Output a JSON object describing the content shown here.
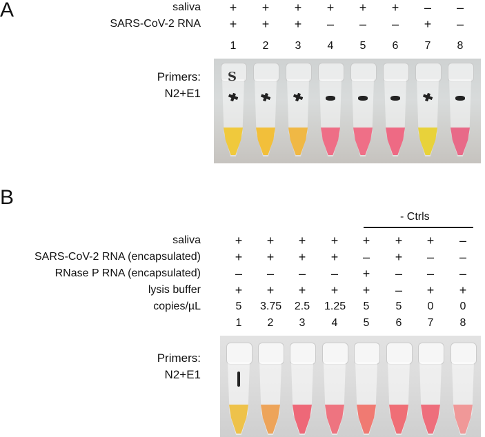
{
  "panelA": {
    "letter": "A",
    "rows": [
      {
        "label": "saliva",
        "values": [
          "+",
          "+",
          "+",
          "+",
          "+",
          "+",
          "–",
          "–"
        ]
      },
      {
        "label": "SARS-CoV-2 RNA",
        "values": [
          "+",
          "+",
          "+",
          "–",
          "–",
          "–",
          "+",
          "–"
        ]
      }
    ],
    "lanes": [
      "1",
      "2",
      "3",
      "4",
      "5",
      "6",
      "7",
      "8"
    ],
    "primers_line1": "Primers:",
    "primers_line2": "N2+E1",
    "tube_mark": "S",
    "tubes": [
      {
        "liquid": "#f0c93c",
        "mark": "cross"
      },
      {
        "liquid": "#f2bf3a",
        "mark": "cross"
      },
      {
        "liquid": "#f0b845",
        "mark": "cross"
      },
      {
        "liquid": "#ee6e86",
        "mark": "dash"
      },
      {
        "liquid": "#ef6f87",
        "mark": "dash"
      },
      {
        "liquid": "#ee6a84",
        "mark": "dash"
      },
      {
        "liquid": "#e8d23a",
        "mark": "cross"
      },
      {
        "liquid": "#e86a88",
        "mark": "dash"
      }
    ]
  },
  "panelB": {
    "letter": "B",
    "ctrl_label": "- Ctrls",
    "rows": [
      {
        "label": "saliva",
        "values": [
          "+",
          "+",
          "+",
          "+",
          "+",
          "+",
          "+",
          "–"
        ]
      },
      {
        "label": "SARS-CoV-2 RNA (encapsulated)",
        "values": [
          "+",
          "+",
          "+",
          "+",
          "–",
          "+",
          "–",
          "–"
        ]
      },
      {
        "label": "RNase P RNA (encapsulated)",
        "values": [
          "–",
          "–",
          "–",
          "–",
          "+",
          "–",
          "–",
          "–"
        ]
      },
      {
        "label": "lysis buffer",
        "values": [
          "+",
          "+",
          "+",
          "+",
          "+",
          "–",
          "+",
          "+"
        ]
      },
      {
        "label": "copies/µL",
        "values": [
          "5",
          "3.75",
          "2.5",
          "1.25",
          "5",
          "5",
          "0",
          "0"
        ]
      }
    ],
    "lanes": [
      "1",
      "2",
      "3",
      "4",
      "5",
      "6",
      "7",
      "8"
    ],
    "primers_line1": "Primers:",
    "primers_line2": "N2+E1",
    "tubes": [
      {
        "liquid": "#eec24a"
      },
      {
        "liquid": "#eda45a"
      },
      {
        "liquid": "#ee6878"
      },
      {
        "liquid": "#ee7480"
      },
      {
        "liquid": "#f07a72"
      },
      {
        "liquid": "#ef6e76"
      },
      {
        "liquid": "#ee6e7c"
      },
      {
        "liquid": "#f09898"
      }
    ]
  }
}
